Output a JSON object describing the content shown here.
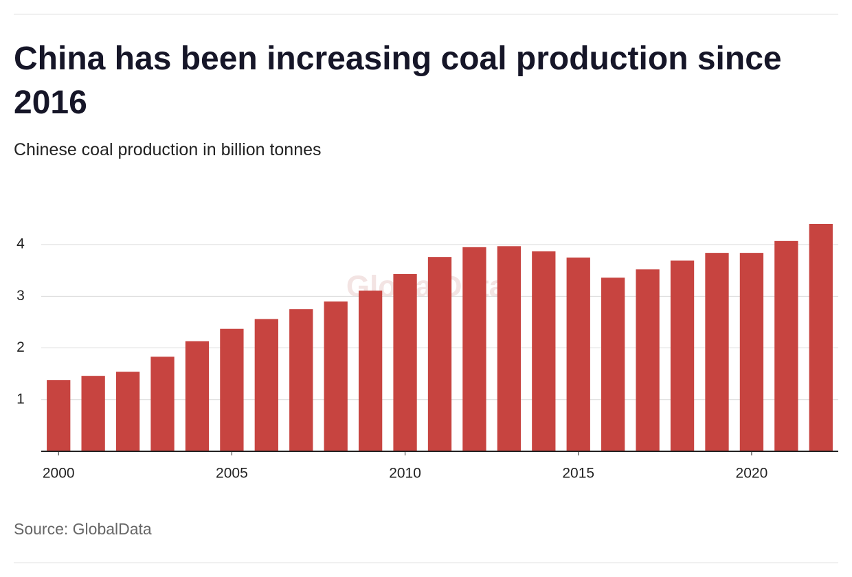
{
  "chart_data": {
    "type": "bar",
    "title": "China has been increasing coal production since 2016",
    "subtitle": "Chinese coal production in billion tonnes",
    "source": "Source: GlobalData",
    "watermark": "GlobalData",
    "x": [
      2000,
      2001,
      2002,
      2003,
      2004,
      2005,
      2006,
      2007,
      2008,
      2009,
      2010,
      2011,
      2012,
      2013,
      2014,
      2015,
      2016,
      2017,
      2018,
      2019,
      2020,
      2021,
      2022
    ],
    "values": [
      1.38,
      1.46,
      1.54,
      1.83,
      2.13,
      2.37,
      2.56,
      2.75,
      2.9,
      3.11,
      3.43,
      3.76,
      3.95,
      3.97,
      3.87,
      3.75,
      3.36,
      3.52,
      3.69,
      3.84,
      3.84,
      4.07,
      4.4
    ],
    "color": "#c74440",
    "xlim": [
      1999.5,
      2022.5
    ],
    "xticks": [
      2000,
      2005,
      2010,
      2015,
      2020
    ],
    "ylim": [
      0,
      4.4
    ],
    "yticks": [
      1,
      2,
      3,
      4
    ],
    "grid": true
  }
}
